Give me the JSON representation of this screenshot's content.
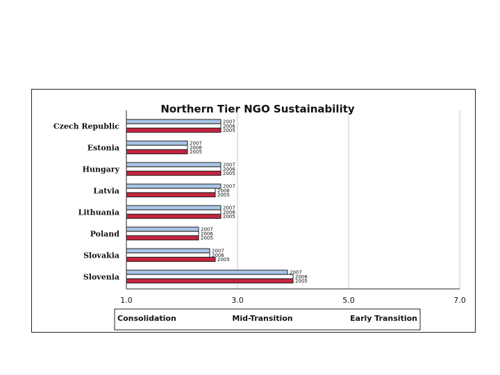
{
  "chart_data": {
    "type": "bar",
    "orientation": "horizontal",
    "title": "Northern Tier NGO Sustainability",
    "categories": [
      "Czech Republic",
      "Estonia",
      "Hungary",
      "Latvia",
      "Lithuania",
      "Poland",
      "Slovakia",
      "Slovenia"
    ],
    "series": [
      {
        "name": "2007",
        "color": "#a9c4e6",
        "values": [
          2.7,
          2.1,
          2.7,
          2.7,
          2.7,
          2.3,
          2.5,
          3.9
        ]
      },
      {
        "name": "2006",
        "color": "#ffffff",
        "values": [
          2.7,
          2.1,
          2.7,
          2.6,
          2.7,
          2.3,
          2.5,
          4.0
        ]
      },
      {
        "name": "2005",
        "color": "#c3243f",
        "values": [
          2.7,
          2.1,
          2.7,
          2.6,
          2.7,
          2.3,
          2.6,
          4.0
        ]
      }
    ],
    "xlim": [
      1.0,
      7.0
    ],
    "xticks": [
      "1.0",
      "3.0",
      "5.0",
      "7.0"
    ],
    "grid": true,
    "scale_labels": [
      "Consolidation",
      "Mid-Transition",
      "Early Transition"
    ]
  }
}
